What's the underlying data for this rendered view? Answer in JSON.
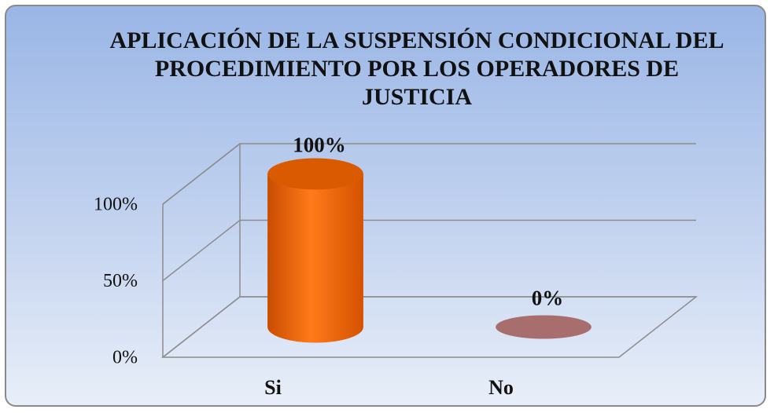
{
  "chart_data": {
    "type": "bar",
    "title": "APLICACIÓN DE LA SUSPENSIÓN CONDICIONAL DEL PROCEDIMIENTO POR LOS OPERADORES DE JUSTICIA",
    "categories": [
      "Si",
      "No"
    ],
    "values": [
      100,
      0
    ],
    "value_labels": [
      "100%",
      "0%"
    ],
    "colors": [
      "#ff6a00",
      "#a86e6e"
    ],
    "ylim": [
      0,
      100
    ],
    "yticks": [
      {
        "value": 0,
        "label": "0%"
      },
      {
        "value": 50,
        "label": "50%"
      },
      {
        "value": 100,
        "label": "100%"
      }
    ],
    "grid": true
  }
}
